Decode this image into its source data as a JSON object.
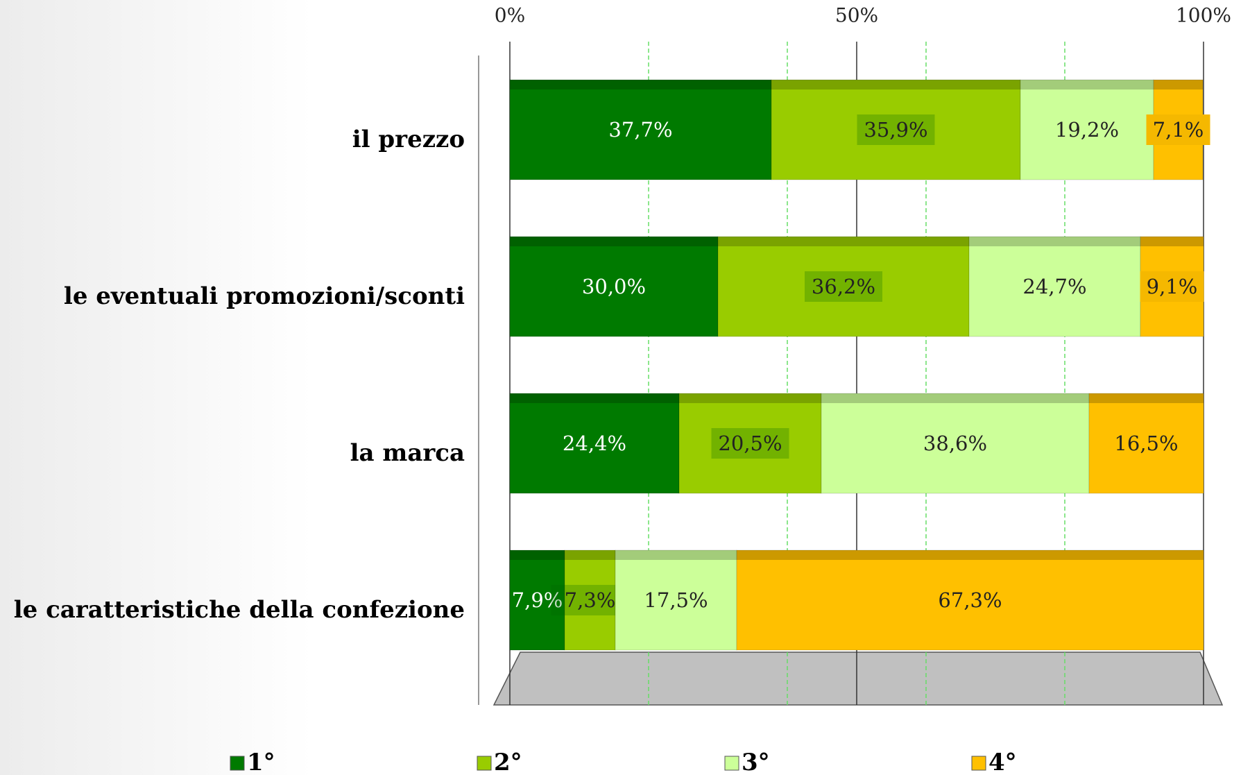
{
  "chart_data": {
    "type": "stacked_bar_horizontal",
    "categories": [
      "il prezzo",
      "le eventuali promozioni/sconti",
      "la marca",
      "le caratteristiche della confezione"
    ],
    "series": [
      {
        "name": "1°",
        "color": "#007a00",
        "values": [
          37.7,
          30.0,
          24.4,
          7.9
        ],
        "value_labels": [
          "37,7%",
          "30,0%",
          "24,4%",
          "7,9%"
        ]
      },
      {
        "name": "2°",
        "color": "#99cc00",
        "values": [
          35.9,
          36.2,
          20.5,
          7.3
        ],
        "value_labels": [
          "35,9%",
          "36,2%",
          "20,5%",
          "7,3%"
        ]
      },
      {
        "name": "3°",
        "color": "#ccff99",
        "values": [
          19.2,
          24.7,
          38.6,
          17.5
        ],
        "value_labels": [
          "19,2%",
          "24,7%",
          "38,6%",
          "17,5%"
        ]
      },
      {
        "name": "4°",
        "color": "#ffc000",
        "values": [
          7.1,
          9.1,
          16.5,
          67.3
        ],
        "value_labels": [
          "7,1%",
          "9,1%",
          "16,5%",
          "67,3%"
        ]
      }
    ],
    "xlim": [
      0,
      100
    ],
    "xticks": [
      {
        "value": 0,
        "label": "0%"
      },
      {
        "value": 50,
        "label": "50%"
      },
      {
        "value": 100,
        "label": "100%"
      }
    ],
    "minor_grid": [
      20,
      40,
      60,
      80
    ],
    "legend": "bottom"
  }
}
